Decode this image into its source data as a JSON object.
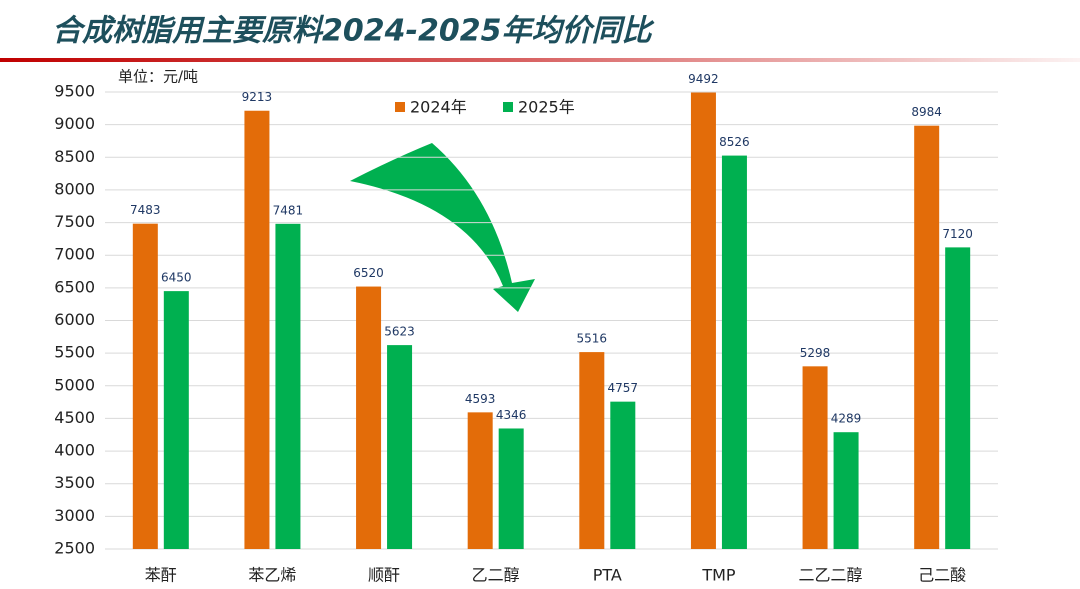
{
  "chart_data": {
    "type": "bar",
    "title": "合成树脂用主要原料2024-2025年均价同比",
    "unit": "单位：元/吨",
    "categories": [
      "苯酐",
      "苯乙烯",
      "顺酐",
      "乙二醇",
      "PTA",
      "TMP",
      "二乙二醇",
      "己二酸"
    ],
    "series": [
      {
        "name": "2024年",
        "color": "#e36c09",
        "values": [
          7483,
          9213,
          6520,
          4593,
          5516,
          9492,
          5298,
          8984
        ]
      },
      {
        "name": "2025年",
        "color": "#00b050",
        "values": [
          6450,
          7481,
          5623,
          4346,
          4757,
          8526,
          4289,
          7120
        ]
      }
    ],
    "ylim": [
      2500,
      9500
    ],
    "yticks": [
      2500,
      3000,
      3500,
      4000,
      4500,
      5000,
      5500,
      6000,
      6500,
      7000,
      7500,
      8000,
      8500,
      9000,
      9500
    ],
    "grid": true
  }
}
